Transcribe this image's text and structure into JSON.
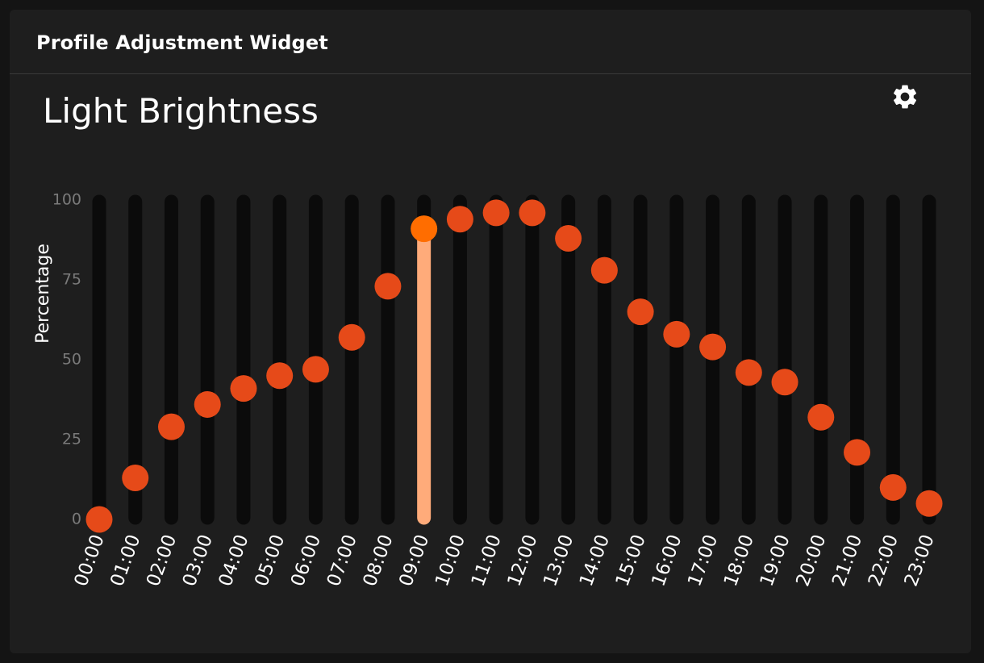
{
  "widget": {
    "title": "Profile Adjustment Widget",
    "settings_icon": "gear-icon"
  },
  "chart_data": {
    "type": "scatter",
    "title": "Light Brightness",
    "xlabel": "",
    "ylabel": "Percentage",
    "ylim": [
      0,
      100
    ],
    "yticks": [
      "0",
      "25",
      "50",
      "75",
      "100"
    ],
    "categories": [
      "00:00",
      "01:00",
      "02:00",
      "03:00",
      "04:00",
      "05:00",
      "06:00",
      "07:00",
      "08:00",
      "09:00",
      "10:00",
      "11:00",
      "12:00",
      "13:00",
      "14:00",
      "15:00",
      "16:00",
      "17:00",
      "18:00",
      "19:00",
      "20:00",
      "21:00",
      "22:00",
      "23:00"
    ],
    "values": [
      0,
      13,
      29,
      36,
      41,
      45,
      47,
      57,
      73,
      91,
      94,
      96,
      96,
      88,
      78,
      65,
      58,
      54,
      46,
      43,
      32,
      21,
      10,
      5
    ],
    "selected_index": 9,
    "grid": false,
    "colors": {
      "point": "#e64a19",
      "selected_point": "#ff6d00",
      "selected_track": "#ffab7a",
      "track": "#0b0b0b"
    }
  }
}
